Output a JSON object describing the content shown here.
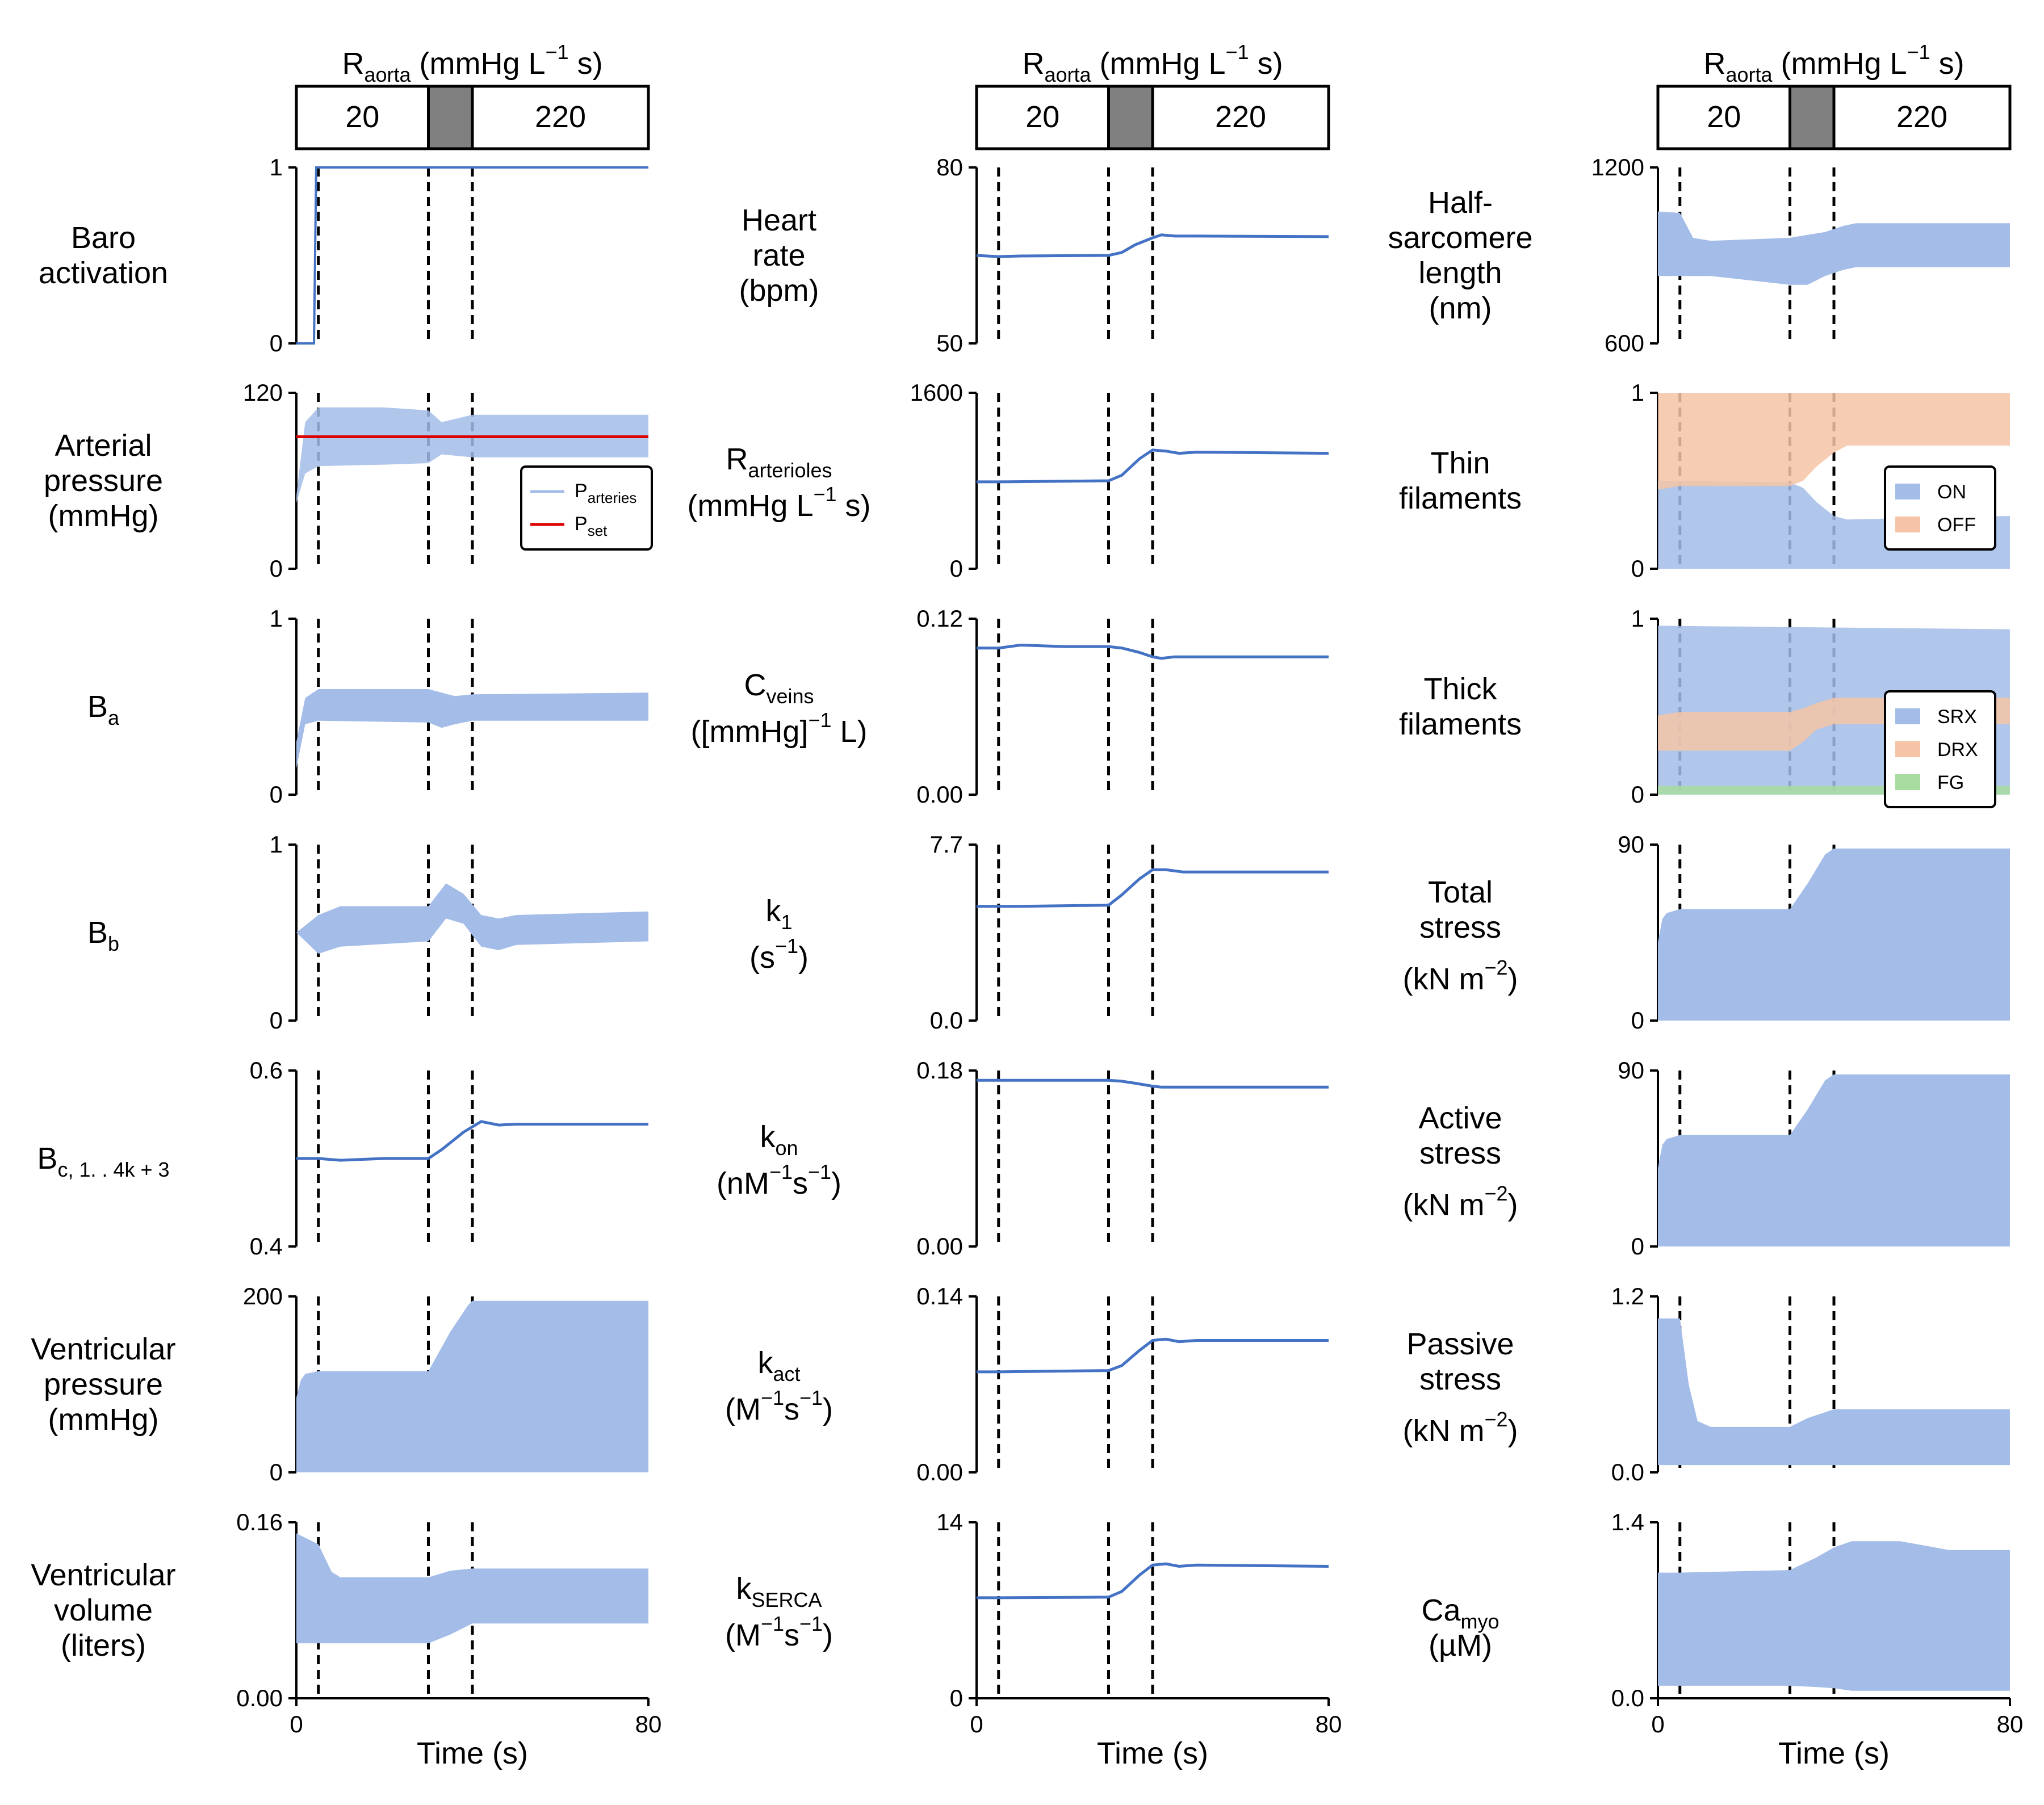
{
  "header": {
    "title_main": "R",
    "title_sub": "aorta",
    "title_rest": " (mmHg L",
    "title_sup": "−1",
    "title_end": " s)",
    "left_value": "20",
    "right_value": "220"
  },
  "x_axis": {
    "label": "Time (s)",
    "ticks": [
      "0",
      "80"
    ],
    "xlim": [
      0,
      80
    ]
  },
  "events": {
    "dashed_lines_at": [
      5,
      30,
      40
    ]
  },
  "colors": {
    "fill": "#a3bce8",
    "line": "#4472c4",
    "red": "#dd0000",
    "on": "#a3bce8",
    "off": "#f5c4a6",
    "green": "#a8dca0"
  },
  "rows": [
    {
      "left": {
        "label_lines": [
          "Baro",
          "activation"
        ],
        "yticks": [
          "1",
          "0"
        ],
        "ylim": [
          0,
          1
        ]
      },
      "mid": {
        "label_lines": [
          "Heart",
          "rate",
          "(bpm)"
        ],
        "yticks": [
          "80",
          "50"
        ],
        "ylim": [
          50,
          80
        ]
      },
      "right_label": {
        "label_lines": [
          "Half-",
          "sarcomere",
          "length",
          "(nm)"
        ]
      },
      "right": {
        "yticks": [
          "1200",
          "600"
        ],
        "ylim": [
          600,
          1200
        ]
      }
    },
    {
      "left": {
        "label_lines": [
          "Arterial",
          "pressure",
          "(mmHg)"
        ],
        "yticks": [
          "120",
          "0"
        ],
        "ylim": [
          0,
          120
        ]
      },
      "mid": {
        "label_main": "R",
        "label_sub": "arterioles",
        "label_line2": "(mmHg L",
        "label_sup": "−1",
        "label_end": " s)",
        "yticks": [
          "1600",
          "0"
        ],
        "ylim": [
          0,
          1600
        ]
      },
      "right_label": {
        "label_lines": [
          "Thin",
          "filaments"
        ]
      },
      "right": {
        "yticks": [
          "1",
          "0"
        ],
        "ylim": [
          0,
          1
        ]
      }
    },
    {
      "left": {
        "label_main": "B",
        "label_sub": "a",
        "yticks": [
          "1",
          "0"
        ],
        "ylim": [
          0,
          1
        ]
      },
      "mid": {
        "label_main": "C",
        "label_sub": "veins",
        "label_line2": "([mmHg]",
        "label_sup": "−1",
        "label_end": " L)",
        "yticks": [
          "0.12",
          "0.00"
        ],
        "ylim": [
          0,
          0.12
        ]
      },
      "right_label": {
        "label_lines": [
          "Thick",
          "filaments"
        ]
      },
      "right": {
        "yticks": [
          "1",
          "0"
        ],
        "ylim": [
          0,
          1
        ]
      }
    },
    {
      "left": {
        "label_main": "B",
        "label_sub": "b",
        "yticks": [
          "1",
          "0"
        ],
        "ylim": [
          0,
          1
        ]
      },
      "mid": {
        "label_main": "k",
        "label_sub": "1",
        "label_line2": "(s",
        "label_sup": "−1",
        "label_end": ")",
        "yticks": [
          "7.7",
          "0.0"
        ],
        "ylim": [
          0,
          7.7
        ]
      },
      "right_label": {
        "label_lines": [
          "Total",
          "stress"
        ],
        "unit": "(kN m",
        "unit_sup": "−2",
        "unit_end": ")"
      },
      "right": {
        "yticks": [
          "90",
          "0"
        ],
        "ylim": [
          0,
          90
        ]
      }
    },
    {
      "left": {
        "label_main": "B",
        "label_sub": "c, 1. . 4k + 3",
        "yticks": [
          "0.6",
          "0.4"
        ],
        "ylim": [
          0.4,
          0.6
        ]
      },
      "mid": {
        "label_main": "k",
        "label_sub": "on",
        "label_line2": "(nM",
        "label_sup": "−1",
        "label_mid": "s",
        "label_sup2": "−1",
        "label_end": ")",
        "yticks": [
          "0.18",
          "0.00"
        ],
        "ylim": [
          0,
          0.18
        ]
      },
      "right_label": {
        "label_lines": [
          "Active",
          "stress"
        ],
        "unit": "(kN m",
        "unit_sup": "−2",
        "unit_end": ")"
      },
      "right": {
        "yticks": [
          "90",
          "0"
        ],
        "ylim": [
          0,
          90
        ]
      }
    },
    {
      "left": {
        "label_lines": [
          "Ventricular",
          "pressure",
          "(mmHg)"
        ],
        "yticks": [
          "200",
          "0"
        ],
        "ylim": [
          0,
          200
        ]
      },
      "mid": {
        "label_main": "k",
        "label_sub": "act",
        "label_line2": "(M",
        "label_sup": "−1",
        "label_mid": "s",
        "label_sup2": "−1",
        "label_end": ")",
        "yticks": [
          "0.14",
          "0.00"
        ],
        "ylim": [
          0,
          0.14
        ]
      },
      "right_label": {
        "label_lines": [
          "Passive",
          "stress"
        ],
        "unit": "(kN m",
        "unit_sup": "−2",
        "unit_end": ")"
      },
      "right": {
        "yticks": [
          "1.2",
          "0.0"
        ],
        "ylim": [
          0,
          1.2
        ]
      }
    },
    {
      "left": {
        "label_lines": [
          "Ventricular",
          "volume",
          "(liters)"
        ],
        "yticks": [
          "0.16",
          "0.00"
        ],
        "ylim": [
          0,
          0.16
        ]
      },
      "mid": {
        "label_main": "k",
        "label_sub": "SERCA",
        "label_line2": "(M",
        "label_sup": "−1",
        "label_mid": "s",
        "label_sup2": "−1",
        "label_end": ")",
        "yticks": [
          "14",
          "0"
        ],
        "ylim": [
          0,
          14
        ]
      },
      "right_label": {
        "label_main": "Ca",
        "label_sub": "myo",
        "label_line2": "(µM)"
      },
      "right": {
        "yticks": [
          "1.4",
          "0.0"
        ],
        "ylim": [
          0,
          1.4
        ]
      }
    }
  ],
  "legends": {
    "arterial": [
      {
        "label": "P",
        "sub": "arteries",
        "kind": "line",
        "color": "#a3bce8"
      },
      {
        "label": "P",
        "sub": "set",
        "kind": "line",
        "color": "#dd0000"
      }
    ],
    "thin": [
      {
        "label": "ON",
        "color": "#a3bce8"
      },
      {
        "label": "OFF",
        "color": "#f5c4a6"
      }
    ],
    "thick": [
      {
        "label": "SRX",
        "color": "#a3bce8"
      },
      {
        "label": "DRX",
        "color": "#f5c4a6"
      },
      {
        "label": "FG",
        "color": "#a8dca0"
      }
    ]
  },
  "chart_data": [
    {
      "type": "area",
      "panel": "Baro activation",
      "x": [
        0,
        4,
        4.5,
        80
      ],
      "y_min": [
        0,
        0,
        1,
        1
      ],
      "y_max": [
        0,
        0,
        1,
        1
      ]
    },
    {
      "type": "area",
      "panel": "Arterial pressure",
      "series": [
        {
          "name": "Parteries",
          "x": [
            0,
            2,
            5,
            20,
            30,
            33,
            40,
            80
          ],
          "y_min": [
            45,
            65,
            70,
            71,
            72,
            78,
            76,
            76
          ],
          "y_max": [
            50,
            100,
            110,
            110,
            108,
            100,
            105,
            105
          ]
        },
        {
          "name": "Pset",
          "x": [
            0,
            80
          ],
          "y": [
            90,
            90
          ]
        }
      ]
    },
    {
      "type": "area",
      "panel": "Ba",
      "x": [
        0,
        2,
        5,
        30,
        33,
        36,
        40,
        80
      ],
      "y_min": [
        0.15,
        0.4,
        0.42,
        0.41,
        0.38,
        0.4,
        0.42,
        0.42
      ],
      "y_max": [
        0.3,
        0.55,
        0.6,
        0.6,
        0.58,
        0.56,
        0.57,
        0.58
      ]
    },
    {
      "type": "area",
      "panel": "Bb",
      "x": [
        0,
        5,
        10,
        30,
        34,
        38,
        42,
        46,
        50,
        80
      ],
      "y_min": [
        0.5,
        0.38,
        0.42,
        0.45,
        0.58,
        0.55,
        0.42,
        0.4,
        0.43,
        0.45
      ],
      "y_max": [
        0.5,
        0.6,
        0.65,
        0.65,
        0.78,
        0.72,
        0.6,
        0.58,
        0.6,
        0.62
      ]
    },
    {
      "type": "line",
      "panel": "Bc",
      "x": [
        0,
        5,
        10,
        20,
        30,
        33,
        38,
        42,
        46,
        50,
        80
      ],
      "y": [
        0.5,
        0.5,
        0.498,
        0.5,
        0.5,
        0.51,
        0.53,
        0.542,
        0.538,
        0.539,
        0.539
      ]
    },
    {
      "type": "area",
      "panel": "Ventricular pressure",
      "x": [
        0,
        1,
        2,
        5,
        30,
        35,
        39,
        40,
        80
      ],
      "y_min": [
        0,
        0,
        0,
        0,
        0,
        0,
        0,
        0,
        0
      ],
      "y_max": [
        85,
        105,
        112,
        115,
        115,
        160,
        190,
        195,
        195
      ]
    },
    {
      "type": "area",
      "panel": "Ventricular volume",
      "x": [
        0,
        5,
        8,
        10,
        30,
        35,
        40,
        80
      ],
      "y_min": [
        0.05,
        0.05,
        0.05,
        0.05,
        0.05,
        0.058,
        0.068,
        0.068
      ],
      "y_max": [
        0.15,
        0.14,
        0.115,
        0.11,
        0.11,
        0.116,
        0.118,
        0.118
      ]
    },
    {
      "type": "line",
      "panel": "Heart rate",
      "x": [
        0,
        5,
        10,
        30,
        33,
        36,
        40,
        42,
        45,
        50,
        80
      ],
      "y": [
        65,
        64.8,
        64.9,
        65,
        65.5,
        66.8,
        68,
        68.5,
        68.3,
        68.3,
        68.2
      ]
    },
    {
      "type": "line",
      "panel": "Rarterioles",
      "x": [
        0,
        5,
        30,
        33,
        37,
        40,
        43,
        46,
        50,
        80
      ],
      "y": [
        790,
        790,
        800,
        850,
        1000,
        1080,
        1070,
        1050,
        1060,
        1050
      ]
    },
    {
      "type": "line",
      "panel": "Cveins",
      "x": [
        0,
        5,
        10,
        20,
        30,
        33,
        37,
        40,
        42,
        45,
        80
      ],
      "y": [
        0.1,
        0.1,
        0.102,
        0.101,
        0.101,
        0.1,
        0.097,
        0.094,
        0.093,
        0.094,
        0.094
      ]
    },
    {
      "type": "line",
      "panel": "k1",
      "x": [
        0,
        5,
        10,
        30,
        33,
        37,
        40,
        43,
        47,
        80
      ],
      "y": [
        5,
        5,
        5,
        5.05,
        5.5,
        6.2,
        6.6,
        6.6,
        6.5,
        6.5
      ]
    },
    {
      "type": "line",
      "panel": "kon",
      "x": [
        0,
        5,
        10,
        30,
        33,
        36,
        40,
        42,
        46,
        80
      ],
      "y": [
        0.17,
        0.17,
        0.17,
        0.17,
        0.169,
        0.167,
        0.164,
        0.163,
        0.163,
        0.163
      ]
    },
    {
      "type": "line",
      "panel": "kact",
      "x": [
        0,
        5,
        30,
        33,
        37,
        40,
        43,
        46,
        50,
        80
      ],
      "y": [
        0.08,
        0.08,
        0.081,
        0.085,
        0.097,
        0.105,
        0.106,
        0.104,
        0.105,
        0.105
      ]
    },
    {
      "type": "line",
      "panel": "kSERCA",
      "x": [
        0,
        5,
        30,
        33,
        37,
        40,
        43,
        46,
        50,
        80
      ],
      "y": [
        8,
        8,
        8.05,
        8.5,
        9.8,
        10.6,
        10.7,
        10.5,
        10.6,
        10.5
      ]
    },
    {
      "type": "area",
      "panel": "Half-sarcomere length",
      "x": [
        0,
        5,
        8,
        12,
        30,
        34,
        38,
        42,
        45,
        80
      ],
      "y_min": [
        830,
        830,
        830,
        830,
        800,
        800,
        830,
        850,
        860,
        860
      ],
      "y_max": [
        1050,
        1045,
        960,
        950,
        960,
        970,
        980,
        1000,
        1010,
        1010
      ]
    },
    {
      "type": "area",
      "panel": "Thin filaments",
      "series": [
        {
          "name": "ON",
          "x": [
            0,
            5,
            30,
            33,
            36,
            40,
            43,
            80
          ],
          "y_min": [
            0,
            0,
            0,
            0,
            0,
            0,
            0,
            0
          ],
          "y_max": [
            0.5,
            0.5,
            0.49,
            0.46,
            0.38,
            0.3,
            0.28,
            0.3
          ]
        },
        {
          "name": "OFF",
          "x": [
            0,
            5,
            30,
            33,
            36,
            40,
            43,
            80
          ],
          "y_min": [
            0.45,
            0.47,
            0.47,
            0.5,
            0.58,
            0.66,
            0.7,
            0.7
          ],
          "y_max": [
            1,
            1,
            1,
            1,
            1,
            1,
            1,
            1
          ]
        }
      ]
    },
    {
      "type": "area",
      "panel": "Thick filaments",
      "series": [
        {
          "name": "SRX",
          "x": [
            0,
            80
          ],
          "y_min": [
            0,
            0
          ],
          "y_max": [
            0.96,
            0.94
          ]
        },
        {
          "name": "DRX",
          "x": [
            0,
            5,
            30,
            33,
            36,
            40,
            80
          ],
          "y_min": [
            0.25,
            0.25,
            0.25,
            0.3,
            0.37,
            0.4,
            0.4
          ],
          "y_max": [
            0.45,
            0.47,
            0.47,
            0.49,
            0.52,
            0.55,
            0.55
          ]
        },
        {
          "name": "FG",
          "x": [
            0,
            80
          ],
          "y_min": [
            0,
            0
          ],
          "y_max": [
            0.05,
            0.05
          ]
        }
      ]
    },
    {
      "type": "area",
      "panel": "Total stress",
      "x": [
        0,
        1,
        2,
        5,
        30,
        34,
        38,
        40,
        80
      ],
      "y_min": [
        0,
        0,
        0,
        0,
        0,
        0,
        0,
        0,
        0
      ],
      "y_max": [
        40,
        52,
        55,
        57,
        57,
        70,
        85,
        88,
        88
      ]
    },
    {
      "type": "area",
      "panel": "Active stress",
      "x": [
        0,
        1,
        2,
        5,
        30,
        34,
        38,
        40,
        80
      ],
      "y_min": [
        0,
        0,
        0,
        0,
        0,
        0,
        0,
        0,
        0
      ],
      "y_max": [
        40,
        52,
        55,
        57,
        57,
        70,
        85,
        88,
        88
      ]
    },
    {
      "type": "area",
      "panel": "Passive stress",
      "x": [
        0,
        5,
        7,
        9,
        12,
        30,
        34,
        40,
        80
      ],
      "y_min": [
        0.05,
        0.05,
        0.05,
        0.05,
        0.05,
        0.05,
        0.05,
        0.05,
        0.05
      ],
      "y_max": [
        1.05,
        1.05,
        0.6,
        0.35,
        0.31,
        0.31,
        0.37,
        0.43,
        0.43
      ]
    },
    {
      "type": "area",
      "panel": "Camyo",
      "x": [
        0,
        5,
        30,
        36,
        40,
        44,
        55,
        63,
        66,
        80
      ],
      "y_min": [
        0.1,
        0.1,
        0.1,
        0.09,
        0.08,
        0.06,
        0.06,
        0.06,
        0.06,
        0.06
      ],
      "y_max": [
        1.0,
        1.0,
        1.02,
        1.12,
        1.2,
        1.25,
        1.25,
        1.2,
        1.18,
        1.18
      ]
    }
  ]
}
